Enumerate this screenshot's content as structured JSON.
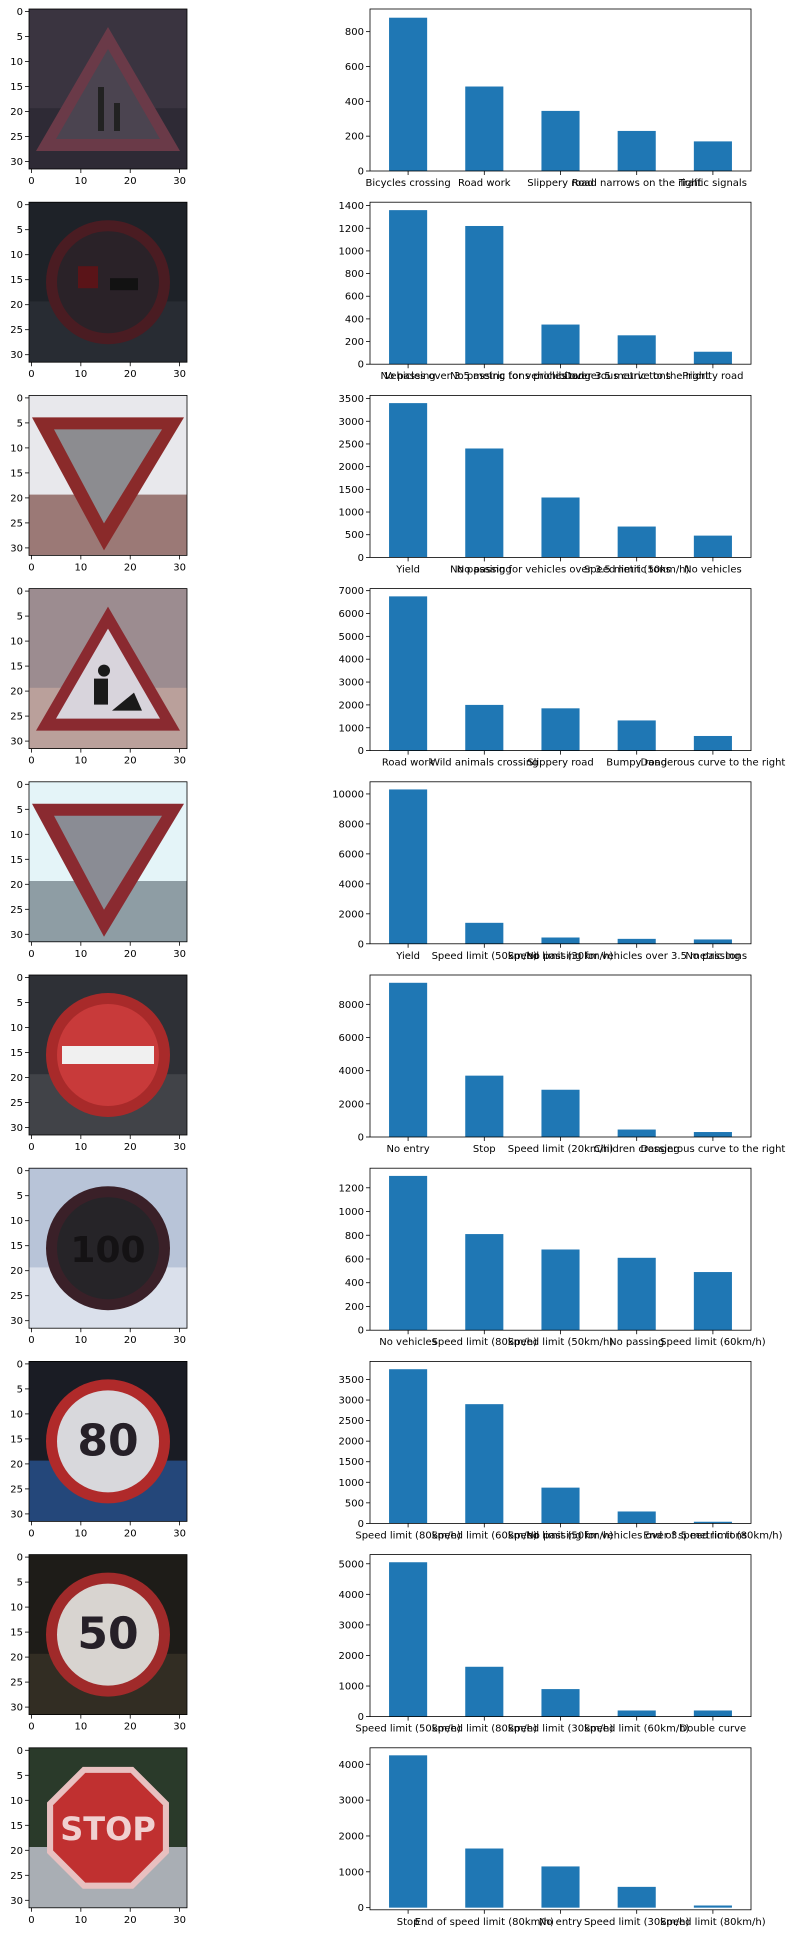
{
  "image_axes": {
    "xticks": [
      "0",
      "10",
      "20",
      "30"
    ],
    "yticks": [
      "0",
      "5",
      "10",
      "15",
      "20",
      "25",
      "30"
    ],
    "xlim": [
      -0.5,
      31.5
    ],
    "ylim": [
      -0.5,
      31.5
    ]
  },
  "colors": {
    "bar": "#1f77b4"
  },
  "panels": [
    {
      "sign": {
        "shape": "triangle",
        "label": "",
        "bg": "#3a3440",
        "bg2": "#2a2630",
        "fill": "#4b4450",
        "border": "#6a3a48",
        "symbol": "narrows-right"
      }
    },
    {
      "sign": {
        "shape": "circle",
        "label": "",
        "bg": "#1e2228",
        "bg2": "#2c3038",
        "fill": "#2a2228",
        "border": "#4a1c22",
        "symbol": "no-passing"
      }
    },
    {
      "sign": {
        "shape": "inverted-triangle",
        "label": "",
        "bg": "#e8e8ec",
        "bg2": "#7a4a44",
        "fill": "#8c8c90",
        "border": "#8a2a2a",
        "symbol": ""
      }
    },
    {
      "sign": {
        "shape": "triangle",
        "label": "",
        "bg": "#9c8c90",
        "bg2": "#c8a8a0",
        "fill": "#d8d4dc",
        "border": "#8a2a30",
        "symbol": "road-work"
      }
    },
    {
      "sign": {
        "shape": "inverted-triangle",
        "label": "",
        "bg": "#e4f4f8",
        "bg2": "#6a7880",
        "fill": "#8a8c94",
        "border": "#8a2a30",
        "symbol": ""
      }
    },
    {
      "sign": {
        "shape": "circle",
        "label": "",
        "bg": "#2e3036",
        "bg2": "#4a4c50",
        "fill": "#c83a3a",
        "border": "#a82a2a",
        "symbol": "bar"
      }
    },
    {
      "sign": {
        "shape": "circle",
        "label": "100",
        "bg": "#b8c4d8",
        "bg2": "#e8ecf4",
        "fill": "#262428",
        "border": "#3a2028",
        "symbol": ""
      }
    },
    {
      "sign": {
        "shape": "circle",
        "label": "80",
        "bg": "#1a1c24",
        "bg2": "#2a5aa0",
        "fill": "#d8d8dc",
        "border": "#b02a2a",
        "symbol": ""
      }
    },
    {
      "sign": {
        "shape": "circle",
        "label": "50",
        "bg": "#1e1c18",
        "bg2": "#3a3428",
        "fill": "#d8d4d0",
        "border": "#a02a2a",
        "symbol": ""
      }
    },
    {
      "sign": {
        "shape": "octagon",
        "label": "STOP",
        "bg": "#2a3a2a",
        "bg2": "#e0e0f0",
        "fill": "#c03030",
        "border": "#e8c0c0",
        "symbol": ""
      }
    }
  ],
  "chart_data": [
    {
      "type": "bar",
      "categories": [
        "Bicycles crossing",
        "Road work",
        "Slippery road",
        "Road narrows on the right",
        "Traffic signals"
      ],
      "values": [
        880,
        485,
        345,
        230,
        170
      ],
      "ylim": [
        0,
        930
      ],
      "yticks": [
        0,
        200,
        400,
        600,
        800
      ]
    },
    {
      "type": "bar",
      "categories": [
        "No passing",
        "Vehicles over 3.5 metric tons prohibited",
        "No passing for vehicles over 3.5 metric tons",
        "Dangerous curve to the right",
        "Priority road"
      ],
      "values": [
        1360,
        1220,
        350,
        255,
        110
      ],
      "ylim": [
        0,
        1430
      ],
      "yticks": [
        0,
        200,
        400,
        600,
        800,
        1000,
        1200,
        1400
      ]
    },
    {
      "type": "bar",
      "categories": [
        "Yield",
        "No passing",
        "No passing for vehicles over 3.5 metric tons",
        "Speed limit (50km/h)",
        "No vehicles"
      ],
      "values": [
        3400,
        2400,
        1320,
        680,
        480
      ],
      "ylim": [
        0,
        3570
      ],
      "yticks": [
        0,
        500,
        1000,
        1500,
        2000,
        2500,
        3000,
        3500
      ]
    },
    {
      "type": "bar",
      "categories": [
        "Road work",
        "Wild animals crossing",
        "Slippery road",
        "Bumpy road",
        "Dangerous curve to the right"
      ],
      "values": [
        6750,
        2000,
        1850,
        1320,
        640
      ],
      "ylim": [
        0,
        7090
      ],
      "yticks": [
        0,
        1000,
        2000,
        3000,
        4000,
        5000,
        6000,
        7000
      ]
    },
    {
      "type": "bar",
      "categories": [
        "Yield",
        "Speed limit (50km/h)",
        "Speed limit (30km/h)",
        "No passing for vehicles over 3.5 metric tons",
        "No passing"
      ],
      "values": [
        10300,
        1400,
        420,
        330,
        290
      ],
      "ylim": [
        0,
        10810
      ],
      "yticks": [
        0,
        2000,
        4000,
        6000,
        8000,
        10000
      ]
    },
    {
      "type": "bar",
      "categories": [
        "No entry",
        "Stop",
        "Speed limit (20km/h)",
        "Children crossing",
        "Dangerous curve to the right"
      ],
      "values": [
        9300,
        3700,
        2850,
        450,
        300
      ],
      "ylim": [
        0,
        9770
      ],
      "yticks": [
        0,
        2000,
        4000,
        6000,
        8000
      ]
    },
    {
      "type": "bar",
      "categories": [
        "No vehicles",
        "Speed limit (80km/h)",
        "Speed limit (50km/h)",
        "No passing",
        "Speed limit (60km/h)"
      ],
      "values": [
        1300,
        810,
        680,
        610,
        490
      ],
      "ylim": [
        0,
        1365
      ],
      "yticks": [
        0,
        200,
        400,
        600,
        800,
        1000,
        1200
      ]
    },
    {
      "type": "bar",
      "categories": [
        "Speed limit (80km/h)",
        "Speed limit (60km/h)",
        "Speed limit (50km/h)",
        "No passing for vehicles over 3.5 metric tons",
        "End of speed limit (80km/h)"
      ],
      "values": [
        3750,
        2900,
        870,
        290,
        40
      ],
      "ylim": [
        0,
        3940
      ],
      "yticks": [
        0,
        500,
        1000,
        1500,
        2000,
        2500,
        3000,
        3500
      ]
    },
    {
      "type": "bar",
      "categories": [
        "Speed limit (50km/h)",
        "Speed limit (80km/h)",
        "Speed limit (30km/h)",
        "Speed limit (60km/h)",
        "Double curve"
      ],
      "values": [
        5050,
        1630,
        900,
        200,
        200
      ],
      "ylim": [
        0,
        5300
      ],
      "yticks": [
        0,
        1000,
        2000,
        3000,
        4000,
        5000
      ]
    },
    {
      "type": "bar",
      "categories": [
        "Stop",
        "End of speed limit (80km/h)",
        "No entry",
        "Speed limit (30km/h)",
        "Speed limit (80km/h)"
      ],
      "values": [
        4250,
        1650,
        1150,
        580,
        60
      ],
      "ylim": [
        -60,
        4460
      ],
      "yticks": [
        0,
        1000,
        2000,
        3000,
        4000
      ]
    }
  ]
}
